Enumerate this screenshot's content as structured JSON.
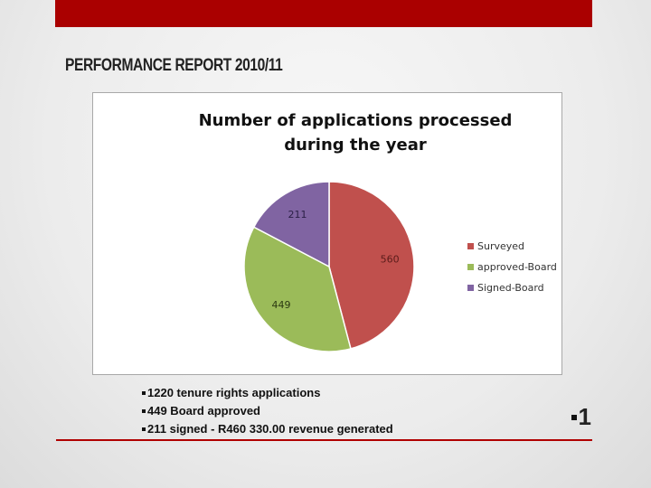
{
  "slide": {
    "title": "PERFORMANCE REPORT 2010/11",
    "accent_color": "#aa0000",
    "slide_number": "1",
    "bullets": [
      "1220 tenure rights applications",
      "449 Board approved",
      "211 signed  - R460 330.00 revenue generated"
    ]
  },
  "chart_data": {
    "type": "pie",
    "title": "Number of applications processed during the year",
    "categories": [
      "Surveyed",
      "approved-Board",
      "Signed-Board"
    ],
    "values": [
      560,
      449,
      211
    ],
    "colors": [
      "#c0504d",
      "#9bbb59",
      "#8064a2"
    ],
    "data_labels": [
      "560",
      "449",
      "211"
    ],
    "legend_position": "right",
    "legend": [
      {
        "label": "Surveyed",
        "color": "#c0504d"
      },
      {
        "label": "approved-Board",
        "color": "#9bbb59"
      },
      {
        "label": "Signed-Board",
        "color": "#8064a2"
      }
    ]
  }
}
